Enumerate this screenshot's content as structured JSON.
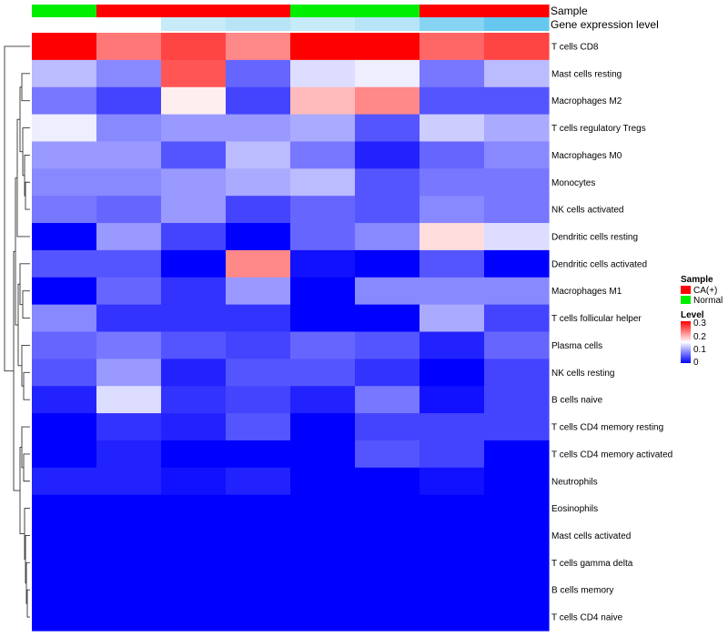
{
  "chart_data": {
    "type": "heatmap",
    "annotation_tracks": [
      {
        "label": "Sample",
        "values": [
          "Normal",
          "CA(+)",
          "CA(+)",
          "CA(+)",
          "Normal",
          "Normal",
          "CA(+)",
          "CA(+)"
        ]
      },
      {
        "label": "Gene expression level",
        "values": [
          0.0,
          0.02,
          0.35,
          0.45,
          0.35,
          0.45,
          0.75,
          0.95
        ]
      }
    ],
    "rows": [
      "T cells CD8",
      "Mast cells resting",
      "Macrophages M2",
      "T cells regulatory  Tregs",
      "Macrophages M0",
      "Monocytes",
      "NK cells activated",
      "Dendritic cells resting",
      "Dendritic cells activated",
      "Macrophages M1",
      "T cells follicular helper",
      "Plasma cells",
      "NK cells resting",
      "B cells naive",
      "T cells CD4 memory resting",
      "T cells CD4 memory activated",
      "Neutrophils",
      "Eosinophils",
      "Mast cells activated",
      "T cells gamma delta",
      "B cells memory",
      "T cells CD4 naive"
    ],
    "values": [
      [
        0.3,
        0.23,
        0.26,
        0.22,
        0.3,
        0.3,
        0.24,
        0.26
      ],
      [
        0.11,
        0.08,
        0.25,
        0.06,
        0.13,
        0.14,
        0.07,
        0.11
      ],
      [
        0.07,
        0.04,
        0.16,
        0.04,
        0.19,
        0.22,
        0.05,
        0.05
      ],
      [
        0.14,
        0.08,
        0.09,
        0.09,
        0.1,
        0.05,
        0.12,
        0.1
      ],
      [
        0.09,
        0.09,
        0.05,
        0.11,
        0.07,
        0.02,
        0.06,
        0.08
      ],
      [
        0.08,
        0.08,
        0.09,
        0.1,
        0.11,
        0.05,
        0.07,
        0.07
      ],
      [
        0.07,
        0.06,
        0.09,
        0.04,
        0.06,
        0.05,
        0.08,
        0.07
      ],
      [
        0.0,
        0.09,
        0.04,
        0.0,
        0.06,
        0.08,
        0.17,
        0.13
      ],
      [
        0.05,
        0.05,
        0.0,
        0.22,
        0.01,
        0.0,
        0.05,
        0.0
      ],
      [
        0.0,
        0.06,
        0.03,
        0.09,
        0.0,
        0.08,
        0.08,
        0.08
      ],
      [
        0.08,
        0.03,
        0.03,
        0.03,
        0.0,
        0.0,
        0.1,
        0.04
      ],
      [
        0.06,
        0.07,
        0.05,
        0.04,
        0.06,
        0.05,
        0.02,
        0.06
      ],
      [
        0.05,
        0.09,
        0.02,
        0.05,
        0.05,
        0.03,
        0.0,
        0.04
      ],
      [
        0.02,
        0.13,
        0.03,
        0.04,
        0.02,
        0.07,
        0.01,
        0.04
      ],
      [
        0.0,
        0.03,
        0.02,
        0.05,
        0.0,
        0.04,
        0.04,
        0.04
      ],
      [
        0.0,
        0.02,
        0.0,
        0.0,
        0.0,
        0.05,
        0.04,
        0.0
      ],
      [
        0.02,
        0.02,
        0.01,
        0.02,
        0.0,
        0.0,
        0.01,
        0.0
      ],
      [
        0.0,
        0.0,
        0.0,
        0.0,
        0.0,
        0.0,
        0.0,
        0.0
      ],
      [
        0.0,
        0.0,
        0.0,
        0.0,
        0.0,
        0.0,
        0.0,
        0.0
      ],
      [
        0.0,
        0.0,
        0.0,
        0.0,
        0.0,
        0.0,
        0.0,
        0.0
      ],
      [
        0.0,
        0.0,
        0.0,
        0.0,
        0.0,
        0.0,
        0.0,
        0.0
      ],
      [
        0.0,
        0.0,
        0.0,
        0.0,
        0.0,
        0.0,
        0.0,
        0.0
      ]
    ],
    "color_scale": {
      "low": "#0000ff",
      "mid": "#ffffff",
      "high": "#ff0000",
      "min": 0,
      "mid_value": 0.15,
      "max": 0.3
    },
    "row_dendrogram": true,
    "legend_placement": "right",
    "legend": {
      "sample": {
        "title": "Sample",
        "entries": [
          {
            "label": "CA(+)",
            "color": "#ff0000"
          },
          {
            "label": "Normal",
            "color": "#00ee00"
          }
        ]
      },
      "level": {
        "title": "Level",
        "ticks": [
          "0.3",
          "0.2",
          "0.1",
          "0"
        ]
      }
    },
    "expression_track_colors": {
      "low": "#ffffff",
      "high": "#5ec5ee"
    }
  }
}
